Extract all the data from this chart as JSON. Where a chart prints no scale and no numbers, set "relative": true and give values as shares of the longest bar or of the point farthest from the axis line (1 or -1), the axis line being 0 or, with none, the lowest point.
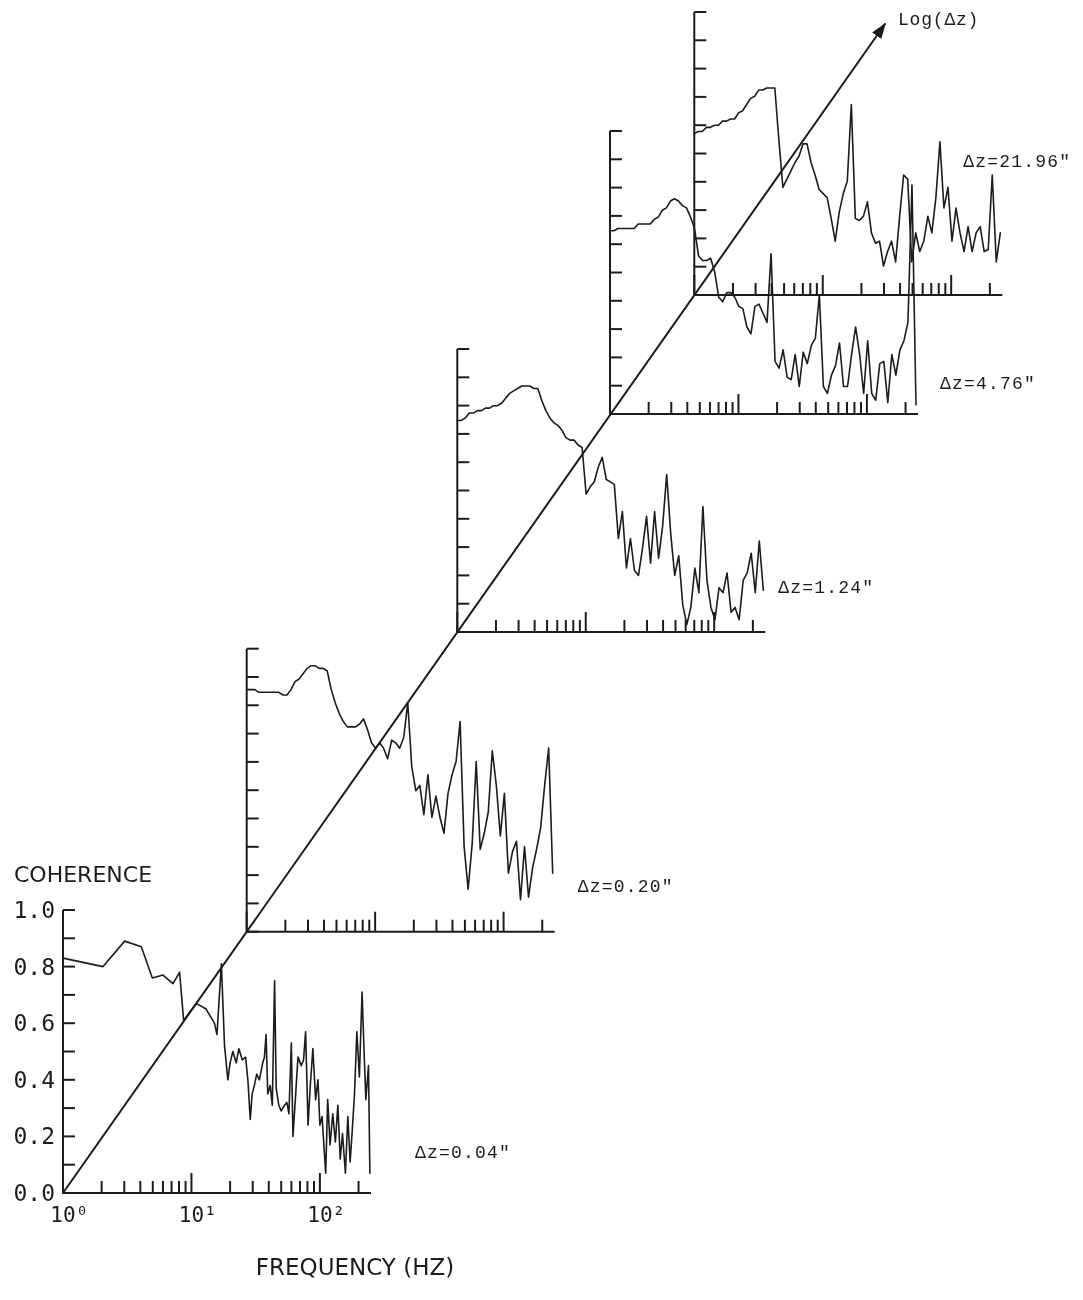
{
  "chart_data": [
    {
      "type": "line",
      "xlabel": "FREQUENCY (HZ)",
      "ylabel": "COHERENCE",
      "annotations": [
        "Δz=0.04\""
      ],
      "log": "x",
      "xlim": [
        1,
        250
      ],
      "ylim": [
        0,
        1
      ],
      "xticks": [
        {
          "value": 1,
          "label": "10⁰"
        },
        {
          "value": 2,
          "label": null
        },
        {
          "value": 3,
          "label": null
        },
        {
          "value": 4,
          "label": null
        },
        {
          "value": 5,
          "label": null
        },
        {
          "value": 6,
          "label": null
        },
        {
          "value": 7,
          "label": null
        },
        {
          "value": 8,
          "label": null
        },
        {
          "value": 9,
          "label": null
        },
        {
          "value": 10,
          "label": "10¹"
        },
        {
          "value": 20,
          "label": null
        },
        {
          "value": 30,
          "label": null
        },
        {
          "value": 40,
          "label": null
        },
        {
          "value": 50,
          "label": null
        },
        {
          "value": 60,
          "label": null
        },
        {
          "value": 70,
          "label": null
        },
        {
          "value": 80,
          "label": null
        },
        {
          "value": 90,
          "label": null
        },
        {
          "value": 100,
          "label": "10²"
        },
        {
          "value": 200,
          "label": null
        }
      ],
      "yticks": [
        {
          "value": 0,
          "label": "0.0"
        },
        {
          "value": 0.1,
          "label": null
        },
        {
          "value": 0.2,
          "label": "0.2"
        },
        {
          "value": 0.3,
          "label": null
        },
        {
          "value": 0.4,
          "label": "0.4"
        },
        {
          "value": 0.5,
          "label": null
        },
        {
          "value": 0.6,
          "label": "0.6"
        },
        {
          "value": 0.7,
          "label": null
        },
        {
          "value": 0.8,
          "label": "0.8"
        },
        {
          "value": 0.9,
          "label": null
        },
        {
          "value": 1,
          "label": "1.0"
        }
      ],
      "color": "#1c1c1c",
      "x": [
        1,
        2.05,
        3.02,
        4.07,
        4.96,
        6.0,
        7.18,
        8.09,
        8.69,
        10.9,
        13.0,
        15.1,
        15.8,
        17.1,
        18.1,
        19.2,
        20.0,
        21.0,
        22.3,
        23.4,
        24.9,
        26.4,
        27.5,
        28.7,
        29.7,
        30.9,
        32.2,
        33.8,
        35.9,
        37.0,
        38.1,
        39.3,
        41.0,
        42.6,
        44.4,
        45.7,
        47.9,
        50.0,
        53.0,
        55.3,
        57.4,
        59.9,
        61.7,
        64.4,
        67.5,
        71.6,
        74.6,
        77.4,
        80.9,
        84.2,
        88.2,
        92.6,
        96.6,
        100,
        104,
        111,
        115,
        120,
        126,
        132,
        138,
        144,
        150,
        158,
        165,
        172,
        178,
        186,
        194,
        203,
        213,
        222,
        228,
        239,
        245
      ],
      "values": [
        0.83,
        0.8,
        0.89,
        0.87,
        0.76,
        0.77,
        0.74,
        0.78,
        0.61,
        0.67,
        0.65,
        0.6,
        0.56,
        0.81,
        0.52,
        0.4,
        0.46,
        0.5,
        0.46,
        0.51,
        0.47,
        0.48,
        0.4,
        0.26,
        0.35,
        0.38,
        0.42,
        0.4,
        0.46,
        0.48,
        0.56,
        0.35,
        0.38,
        0.31,
        0.75,
        0.37,
        0.31,
        0.29,
        0.31,
        0.32,
        0.28,
        0.53,
        0.2,
        0.33,
        0.48,
        0.45,
        0.47,
        0.57,
        0.24,
        0.38,
        0.51,
        0.33,
        0.4,
        0.24,
        0.27,
        0.07,
        0.33,
        0.17,
        0.28,
        0.18,
        0.31,
        0.12,
        0.21,
        0.07,
        0.27,
        0.11,
        0.21,
        0.35,
        0.57,
        0.41,
        0.71,
        0.47,
        0.33,
        0.45,
        0.07
      ]
    },
    {
      "type": "line",
      "annotations": [
        "Δz=0.20\""
      ],
      "relative": true,
      "color": "#1c1c1c",
      "categories": [
        null,
        null,
        null,
        null,
        null,
        null,
        null,
        null,
        null,
        null,
        null,
        null,
        null,
        null,
        null,
        null,
        null,
        null,
        null,
        null,
        null,
        null,
        null,
        null,
        null,
        null,
        null,
        null,
        null,
        null,
        null,
        null,
        null,
        null,
        null,
        null,
        null,
        null,
        null,
        null,
        null,
        null,
        null,
        null,
        null,
        null,
        null,
        null,
        null,
        null,
        null,
        null,
        null,
        null,
        null,
        null,
        null,
        null,
        null,
        null,
        null,
        null,
        null,
        null,
        null,
        null,
        null,
        null,
        null,
        null,
        null,
        null,
        null,
        null,
        null,
        null,
        null
      ],
      "values": [
        0.91,
        0.91,
        0.91,
        0.9,
        0.9,
        0.9,
        0.9,
        0.9,
        0.9,
        0.89,
        0.89,
        0.91,
        0.94,
        0.95,
        0.97,
        0.99,
        1.0,
        1.0,
        0.99,
        0.99,
        0.98,
        0.91,
        0.86,
        0.82,
        0.79,
        0.77,
        0.77,
        0.77,
        0.78,
        0.8,
        0.76,
        0.71,
        0.69,
        0.71,
        0.69,
        0.65,
        0.72,
        0.71,
        0.69,
        0.73,
        0.86,
        0.62,
        0.53,
        0.55,
        0.44,
        0.59,
        0.43,
        0.51,
        0.43,
        0.37,
        0.52,
        0.59,
        0.64,
        0.79,
        0.32,
        0.16,
        0.33,
        0.64,
        0.31,
        0.37,
        0.45,
        0.68,
        0.55,
        0.36,
        0.52,
        0.22,
        0.3,
        0.34,
        0.12,
        0.32,
        0.13,
        0.24,
        0.31,
        0.39,
        0.55,
        0.69,
        0.22
      ]
    },
    {
      "type": "line",
      "annotations": [
        "Δz=1.24\""
      ],
      "relative": true,
      "color": "#1c1c1c",
      "categories": [
        null,
        null,
        null,
        null,
        null,
        null,
        null,
        null,
        null,
        null,
        null,
        null,
        null,
        null,
        null,
        null,
        null,
        null,
        null,
        null,
        null,
        null,
        null,
        null,
        null,
        null,
        null,
        null,
        null,
        null,
        null,
        null,
        null,
        null,
        null,
        null,
        null,
        null,
        null,
        null,
        null,
        null,
        null,
        null,
        null,
        null,
        null,
        null,
        null,
        null,
        null,
        null,
        null,
        null,
        null,
        null,
        null,
        null,
        null,
        null,
        null,
        null,
        null,
        null,
        null,
        null,
        null,
        null,
        null,
        null,
        null,
        null,
        null,
        null,
        null,
        null,
        null
      ],
      "values": [
        0.86,
        0.86,
        0.87,
        0.89,
        0.89,
        0.9,
        0.9,
        0.91,
        0.91,
        0.92,
        0.92,
        0.93,
        0.95,
        0.97,
        0.98,
        0.99,
        1.0,
        1.0,
        1.0,
        0.99,
        0.99,
        0.94,
        0.9,
        0.87,
        0.85,
        0.84,
        0.82,
        0.79,
        0.78,
        0.78,
        0.76,
        0.75,
        0.56,
        0.59,
        0.61,
        0.67,
        0.71,
        0.62,
        0.61,
        0.6,
        0.38,
        0.49,
        0.26,
        0.38,
        0.25,
        0.23,
        0.34,
        0.47,
        0.28,
        0.49,
        0.3,
        0.43,
        0.64,
        0.4,
        0.23,
        0.31,
        0.11,
        0.03,
        0.1,
        0.26,
        0.16,
        0.51,
        0.21,
        0.1,
        0.05,
        0.18,
        0.16,
        0.24,
        0.08,
        0.1,
        0.05,
        0.21,
        0.24,
        0.32,
        0.16,
        0.37,
        0.17
      ]
    },
    {
      "type": "line",
      "annotations": [
        "Δz=4.76\""
      ],
      "relative": true,
      "color": "#1c1c1c",
      "categories": [
        null,
        null,
        null,
        null,
        null,
        null,
        null,
        null,
        null,
        null,
        null,
        null,
        null,
        null,
        null,
        null,
        null,
        null,
        null,
        null,
        null,
        null,
        null,
        null,
        null,
        null,
        null,
        null,
        null,
        null,
        null,
        null,
        null,
        null,
        null,
        null,
        null,
        null,
        null,
        null,
        null,
        null,
        null,
        null,
        null,
        null,
        null,
        null,
        null,
        null,
        null,
        null,
        null,
        null,
        null,
        null,
        null,
        null,
        null,
        null,
        null,
        null,
        null,
        null,
        null,
        null,
        null,
        null,
        null,
        null,
        null,
        null,
        null,
        null,
        null,
        null,
        null
      ],
      "values": [
        0.8,
        0.8,
        0.81,
        0.81,
        0.81,
        0.81,
        0.81,
        0.83,
        0.83,
        0.83,
        0.83,
        0.85,
        0.86,
        0.89,
        0.9,
        0.93,
        0.94,
        0.93,
        0.91,
        0.9,
        0.86,
        0.81,
        0.69,
        0.67,
        0.67,
        0.68,
        0.62,
        0.51,
        0.49,
        0.53,
        0.53,
        0.51,
        0.47,
        0.46,
        0.38,
        0.35,
        0.47,
        0.48,
        0.44,
        0.4,
        0.7,
        0.23,
        0.2,
        0.28,
        0.16,
        0.15,
        0.26,
        0.12,
        0.27,
        0.22,
        0.3,
        0.33,
        0.52,
        0.12,
        0.09,
        0.17,
        0.21,
        0.31,
        0.12,
        0.12,
        0.26,
        0.38,
        0.26,
        0.09,
        0.32,
        0.09,
        0.06,
        0.22,
        0.23,
        0.05,
        0.26,
        0.17,
        0.28,
        0.32,
        0.4,
        1.0,
        0.04
      ]
    },
    {
      "type": "line",
      "annotations": [
        "Δz=21.96\""
      ],
      "relative": true,
      "color": "#1c1c1c",
      "categories": [
        null,
        null,
        null,
        null,
        null,
        null,
        null,
        null,
        null,
        null,
        null,
        null,
        null,
        null,
        null,
        null,
        null,
        null,
        null,
        null,
        null,
        null,
        null,
        null,
        null,
        null,
        null,
        null,
        null,
        null,
        null,
        null,
        null,
        null,
        null,
        null,
        null,
        null,
        null,
        null,
        null,
        null,
        null,
        null,
        null,
        null,
        null,
        null,
        null,
        null,
        null,
        null,
        null,
        null,
        null,
        null,
        null,
        null,
        null,
        null,
        null,
        null,
        null,
        null,
        null,
        null,
        null,
        null,
        null,
        null,
        null,
        null,
        null,
        null,
        null,
        null,
        null
      ],
      "values": [
        0.78,
        0.79,
        0.79,
        0.81,
        0.81,
        0.82,
        0.82,
        0.84,
        0.84,
        0.85,
        0.85,
        0.88,
        0.89,
        0.92,
        0.95,
        0.96,
        0.99,
        0.99,
        1.0,
        1.0,
        1.0,
        0.75,
        0.52,
        0.56,
        0.6,
        0.64,
        0.67,
        0.73,
        0.73,
        0.64,
        0.58,
        0.51,
        0.49,
        0.47,
        0.37,
        0.26,
        0.4,
        0.49,
        0.55,
        0.92,
        0.37,
        0.36,
        0.38,
        0.45,
        0.3,
        0.25,
        0.26,
        0.14,
        0.21,
        0.26,
        0.16,
        0.38,
        0.58,
        0.56,
        0.16,
        0.3,
        0.21,
        0.26,
        0.38,
        0.3,
        0.47,
        0.74,
        0.42,
        0.52,
        0.26,
        0.42,
        0.3,
        0.21,
        0.33,
        0.21,
        0.3,
        0.33,
        0.21,
        0.22,
        0.58,
        0.16,
        0.3
      ]
    },
    {
      "type": "line",
      "annotations": [
        "Log(Δz)"
      ],
      "relative": true,
      "color": "#1c1c1c",
      "categories": [
        null,
        null
      ],
      "values": [
        0,
        1
      ]
    }
  ]
}
